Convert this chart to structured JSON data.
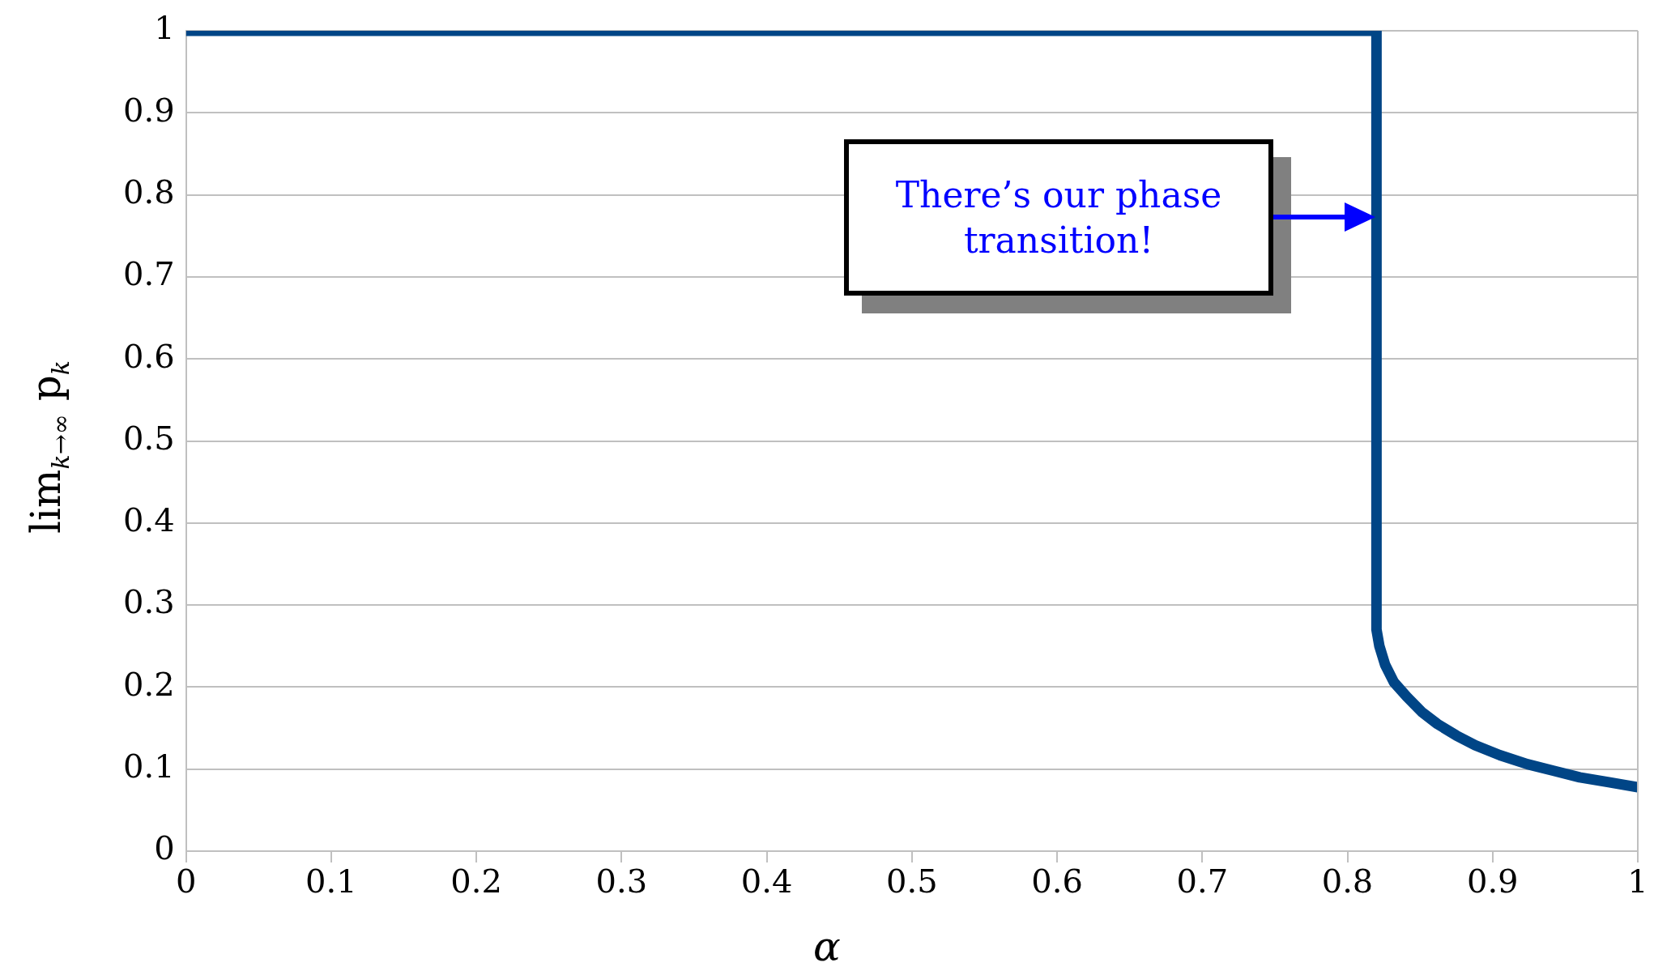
{
  "chart_data": {
    "type": "line",
    "xlabel": "α",
    "ylabel": "lim$_{k→∞}$ p$_{k}$",
    "xlim": [
      0,
      1
    ],
    "xticks": [
      0,
      0.1,
      0.2,
      0.3,
      0.4,
      0.5,
      0.6,
      0.7,
      0.8,
      0.9,
      1
    ],
    "ylim": [
      0,
      1
    ],
    "yticks": [
      0,
      0.1,
      0.2,
      0.3,
      0.4,
      0.5,
      0.6,
      0.7,
      0.8,
      0.9,
      1
    ],
    "grid": "y",
    "legend": false,
    "marker": "none",
    "line_style": "solid",
    "series": [
      {
        "color": "#004586",
        "x": [
          0,
          0.82,
          0.82,
          0.822,
          0.826,
          0.832,
          0.841,
          0.851,
          0.862,
          0.875,
          0.888,
          0.905,
          0.924,
          0.942,
          0.96,
          0.98,
          1
        ],
        "values": [
          1,
          1,
          0.27,
          0.25,
          0.227,
          0.206,
          0.188,
          0.17,
          0.155,
          0.141,
          0.129,
          0.117,
          0.106,
          0.098,
          0.09,
          0.084,
          0.078
        ]
      }
    ],
    "annotations": [
      "There’s our phase transition!"
    ]
  }
}
